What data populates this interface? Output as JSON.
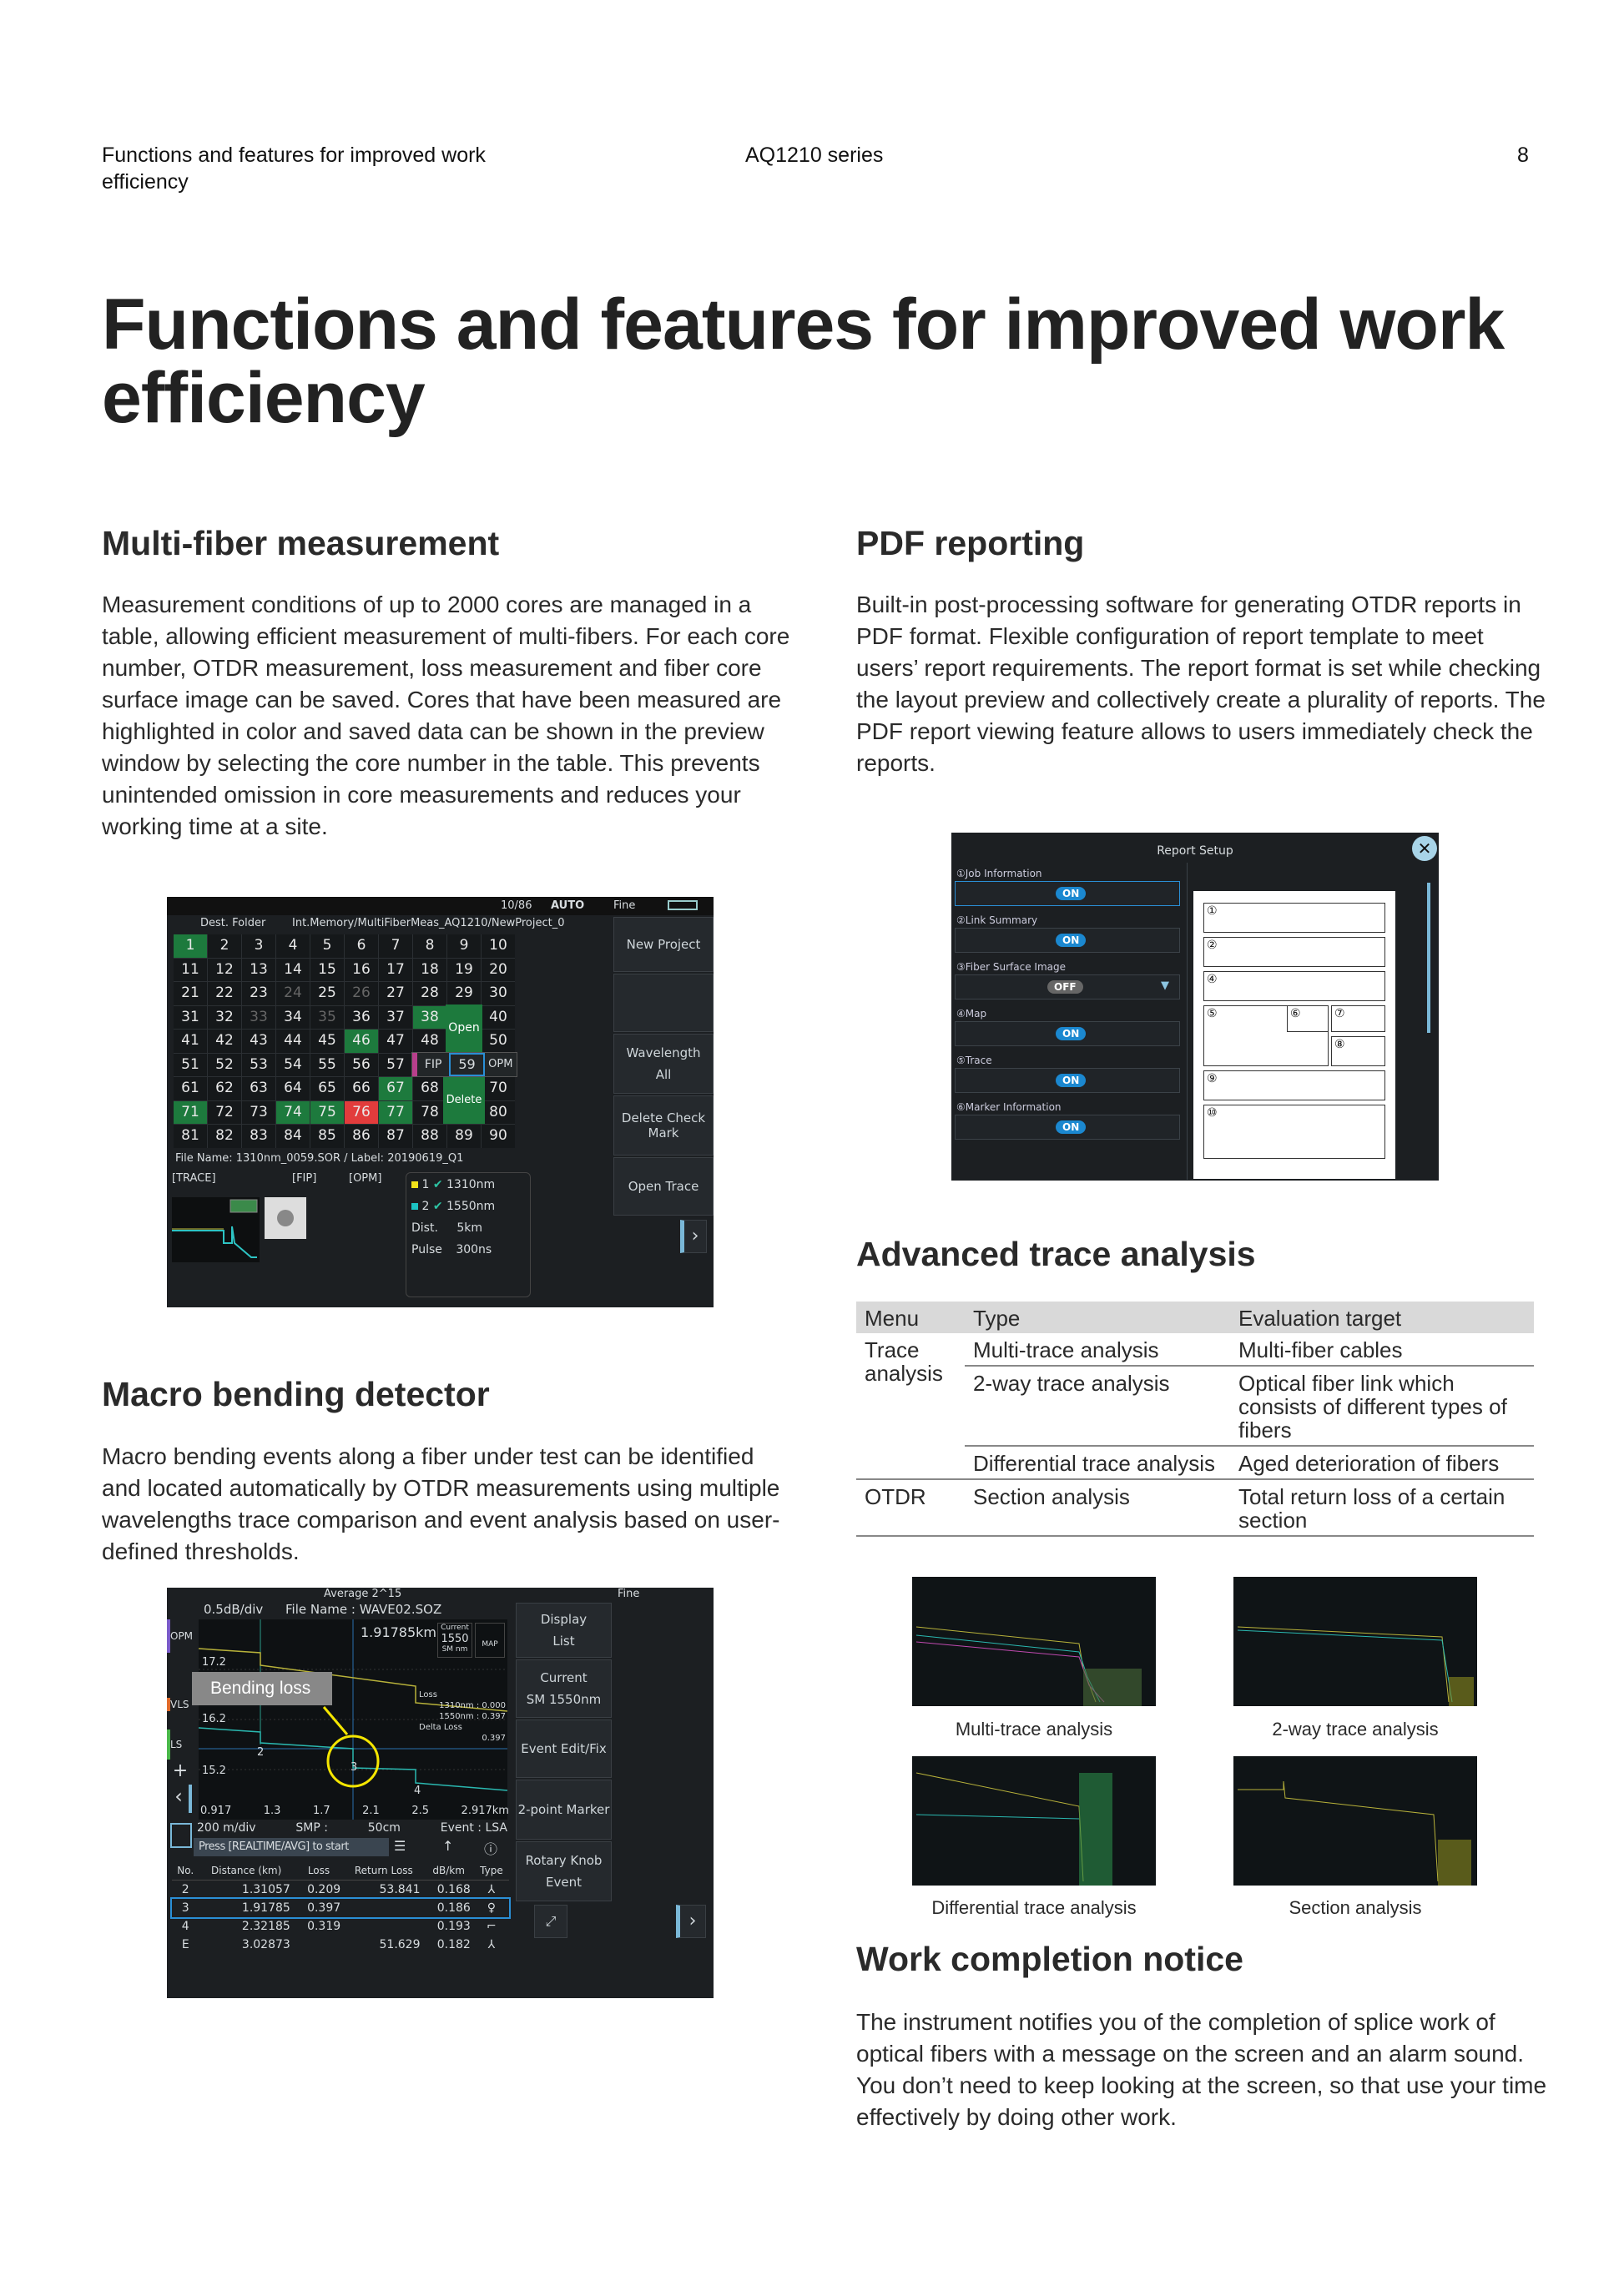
{
  "header": {
    "section": "Functions and features for improved work efficiency",
    "series": "AQ1210 series",
    "page": "8"
  },
  "title": "Functions and features for improved work efficiency",
  "multi_fiber": {
    "heading": "Multi-fiber measurement",
    "body": "Measurement conditions of up to 2000 cores are managed in a table, allowing efficient measurement of multi-fibers. For each core number, OTDR measurement, loss measurement and fiber core surface image can be saved. Cores that have been measured are highlighted in color and saved data can be shown in the preview window by selecting the core number in the table. This prevents unintended omission in core measurements and reduces your working time at a site.",
    "screen": {
      "status": "10/86",
      "auto": "AUTO",
      "fine": "Fine",
      "dest_label": "Dest. Folder",
      "dest_path": "Int.Memory/MultiFiberMeas_AQ1210/NewProject_0",
      "cells_green": [
        1,
        38,
        46,
        67,
        71,
        74,
        75,
        77
      ],
      "cells_red": [
        76
      ],
      "cells_dim": [
        24,
        26,
        33,
        35
      ],
      "popup": {
        "open": "Open",
        "fip": "FIP",
        "selected": "59",
        "opm": "OPM",
        "delete": "Delete"
      },
      "file_line": "File Name: 1310nm_0059.SOR / Label: 20190619_Q1",
      "trace_label": "[TRACE]",
      "fip_label": "[FIP]",
      "opm_label": "[OPM]",
      "wl1": "1310nm",
      "wl2": "1550nm",
      "n1": "1",
      "n2": "2",
      "dist_label": "Dist.",
      "dist": "5km",
      "pulse_label": "Pulse",
      "pulse": "300ns",
      "side": {
        "new_project": "New Project",
        "wavelength": "Wavelength",
        "wavelength_value": "All",
        "delete_check": "Delete Check Mark",
        "open_trace": "Open Trace"
      }
    }
  },
  "macro": {
    "heading": "Macro bending detector",
    "body": "Macro bending events along a fiber under test can be identified and located automatically by OTDR measurements using multiple wavelengths trace comparison and event analysis based on user-defined thresholds.",
    "screen": {
      "average": "Average 2^15",
      "fine": "Fine",
      "scale": "0.5dB/div",
      "file": "File Name : WAVE02.SOZ",
      "cursor": "1.91785km",
      "current_label": "Current",
      "current_wl": "1550",
      "current_mode": "SM nm",
      "map": "MAP",
      "callout": "Bending loss",
      "loss_title": "Loss",
      "loss1": "1310nm : 0.000",
      "loss2": "1550nm : 0.397",
      "delta_title": "Delta Loss",
      "delta": "0.397",
      "y_ticks": [
        "17.2",
        "16.2",
        "15.2"
      ],
      "x_ticks": [
        "0.917",
        "1.3",
        "1.7",
        "2.1",
        "2.5",
        "2.917km"
      ],
      "markers": [
        "2",
        "3",
        "4"
      ],
      "left_tabs": [
        "OPM",
        "VLS",
        "LS"
      ],
      "bottom": {
        "div": "200 m/div",
        "smp": "SMP :",
        "smp_val": "50cm",
        "event": "Event : LSA"
      },
      "prompt": "Press [REALTIME/AVG] to start",
      "columns": [
        "No.",
        "Distance (km)",
        "Loss",
        "Return Loss",
        "dB/km",
        "Type"
      ],
      "rows": [
        [
          "2",
          "1.31057",
          "0.209",
          "53.841",
          "0.168",
          "⅄"
        ],
        [
          "3",
          "1.91785",
          "0.397",
          "",
          "0.186",
          "♀"
        ],
        [
          "4",
          "2.32185",
          "0.319",
          "",
          "0.193",
          "⌐"
        ],
        [
          "E",
          "3.02873",
          "",
          "51.629",
          "0.182",
          "⅄"
        ]
      ],
      "side": {
        "display": "Display",
        "display_val": "List",
        "current": "Current",
        "current_val": "SM 1550nm",
        "event_edit": "Event Edit/Fix",
        "two_point": "2-point Marker",
        "rotary": "Rotary Knob",
        "rotary_val": "Event"
      }
    }
  },
  "pdf": {
    "heading": "PDF reporting",
    "body": "Built-in post-processing software for generating OTDR reports in PDF format. Flexible configuration of report template to meet users’ report requirements. The report format is set while checking the layout preview and collectively create a plurality of reports. The PDF report viewing feature allows to users immediately check the reports.",
    "screen": {
      "title": "Report Setup",
      "items": [
        {
          "label": "①Job Information",
          "state": "ON"
        },
        {
          "label": "②Link Summary",
          "state": "ON"
        },
        {
          "label": "③Fiber Surface Image",
          "state": "OFF"
        },
        {
          "label": "④Map",
          "state": "ON"
        },
        {
          "label": "⑤Trace",
          "state": "ON"
        },
        {
          "label": "⑥Marker Information",
          "state": "ON"
        }
      ],
      "layout_labels": [
        "①",
        "②",
        "④",
        "⑤",
        "⑥",
        "⑦",
        "⑧",
        "⑨",
        "⑩"
      ]
    }
  },
  "advanced": {
    "heading": "Advanced trace analysis",
    "columns": [
      "Menu",
      "Type",
      "Evaluation target"
    ],
    "rows": [
      {
        "menu": "Trace analysis",
        "type": "Multi-trace analysis",
        "target": "Multi-fiber cables"
      },
      {
        "menu": "",
        "type": "2-way trace analysis",
        "target": "Optical fiber link which consists of different types of fibers"
      },
      {
        "menu": "",
        "type": "Differential trace analysis",
        "target": "Aged deterioration of fibers"
      },
      {
        "menu": "OTDR",
        "type": "Section analysis",
        "target": "Total return loss of a certain section"
      }
    ],
    "captions": [
      "Multi-trace analysis",
      "2-way trace analysis",
      "Differential trace analysis",
      "Section analysis"
    ]
  },
  "work": {
    "heading": "Work completion notice",
    "body": "The instrument notifies you of the completion of splice work of optical fibers with a message on the screen and an alarm sound. You don’t need to keep looking at the screen, so that use your time effectively by doing other work."
  },
  "colors": {
    "green": "#1d7a3d",
    "red": "#e23c3c",
    "screen_bg": "#1c1f22",
    "on_blue": "#1b88d0",
    "callout_yellow": "#f5e600"
  }
}
